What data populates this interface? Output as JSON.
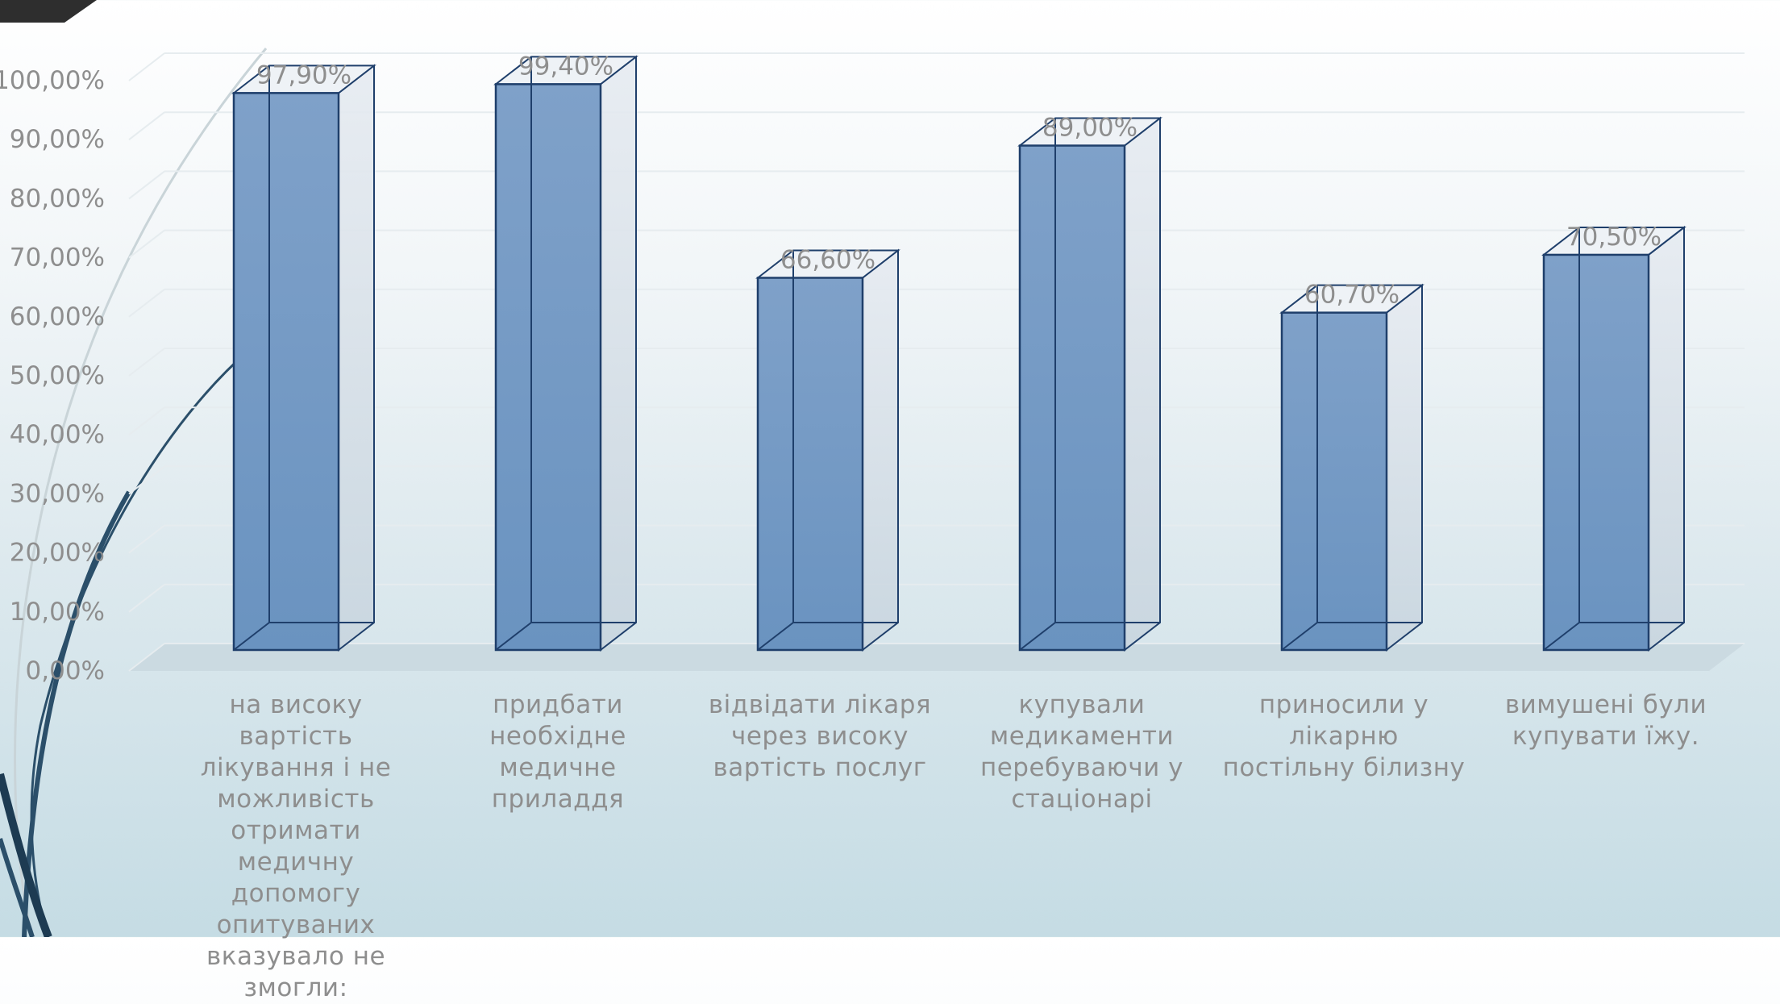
{
  "chart_data": {
    "type": "bar",
    "categories": [
      "на високу вартість лікування і не можливість отримати медичну допомогу опитуваних вказувало не змогли:",
      "придбати необхідне медичне приладдя",
      "відвідати лікаря через високу вартість послуг",
      "купували медикаменти перебуваючи у стаціонарі",
      "приносили у лікарню постільну білизну",
      "вимушені були купувати їжу."
    ],
    "values": [
      97.9,
      99.4,
      66.6,
      89.0,
      60.7,
      70.5
    ],
    "data_labels": [
      "97,90%",
      "99,40%",
      "66,60%",
      "89,00%",
      "60,70%",
      "70,50%"
    ],
    "y_ticks": [
      "0,00%",
      "10,00%",
      "20,00%",
      "30,00%",
      "40,00%",
      "50,00%",
      "60,00%",
      "70,00%",
      "80,00%",
      "90,00%",
      "100,00%"
    ],
    "ylim": [
      0,
      100
    ],
    "grid": true,
    "style": "3d-column",
    "bar_color": "#5b84b8",
    "edge_color": "#1f3f6b",
    "text_color": "#8e8e8e"
  }
}
